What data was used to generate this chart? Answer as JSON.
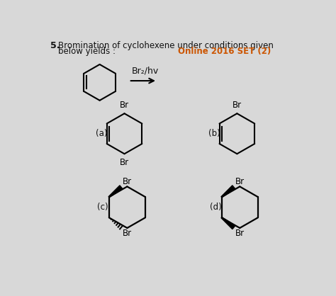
{
  "title_number": "5.",
  "title_text1": "Bromination of cyclohexene under conditions given",
  "title_text2": "below yields :",
  "online_text": "Online 2016 SET (2)",
  "reagent_text": "Br₂/hv",
  "bg_color": "#d8d8d8",
  "text_color": "#111111",
  "orange_color": "#cc5500",
  "label_a": "(a)",
  "label_b": "(b)",
  "label_c": "(c)",
  "label_d": "(d)"
}
